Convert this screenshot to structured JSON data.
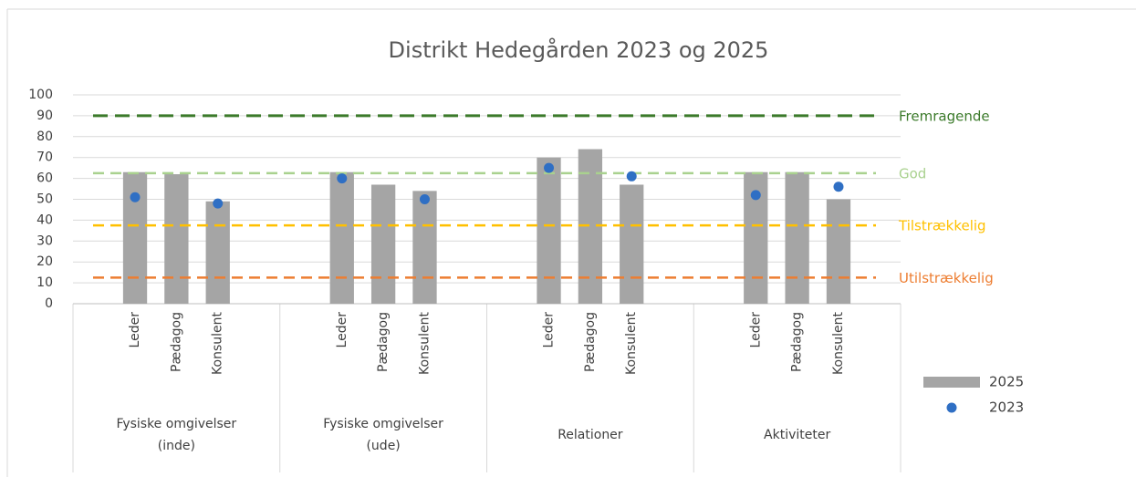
{
  "chart_data": {
    "type": "bar",
    "title": "Distrikt Hedegården 2023 og 2025",
    "categories": [
      "Leder",
      "Pædagog",
      "Konsulent",
      "Leder",
      "Pædagog",
      "Konsulent",
      "Leder",
      "Pædagog",
      "Konsulent",
      "Leder",
      "Pædagog",
      "Konsulent"
    ],
    "groups": [
      {
        "label": [
          "Fysiske omgivelser",
          "(inde)"
        ],
        "size": 3
      },
      {
        "label": [
          "Fysiske omgivelser",
          "(ude)"
        ],
        "size": 3
      },
      {
        "label": [
          "Relationer"
        ],
        "size": 3
      },
      {
        "label": [
          "Aktiviteter"
        ],
        "size": 3
      }
    ],
    "series": [
      {
        "name": "2025",
        "kind": "bar",
        "color": "#a5a5a5",
        "values": [
          63,
          62,
          49,
          63,
          57,
          54,
          70,
          74,
          57,
          63,
          63,
          50
        ]
      },
      {
        "name": "2023",
        "kind": "dot",
        "color": "#2f6fc4",
        "values": [
          51,
          null,
          48,
          60,
          null,
          50,
          65,
          null,
          61,
          52,
          null,
          56
        ]
      }
    ],
    "reference_lines": [
      {
        "name": "Fremragende",
        "value": 90,
        "color": "#3b7a2a"
      },
      {
        "name": "God",
        "value": 62.5,
        "color": "#a9d18e"
      },
      {
        "name": "Tilstrækkelig",
        "value": 37.5,
        "color": "#ffc000"
      },
      {
        "name": "Utilstrækkelig",
        "value": 12.5,
        "color": "#ed7d31"
      }
    ],
    "ylim": [
      0,
      100
    ],
    "yticks": [
      0,
      10,
      20,
      30,
      40,
      50,
      60,
      70,
      80,
      90,
      100
    ],
    "grid": true,
    "legend": "right"
  }
}
